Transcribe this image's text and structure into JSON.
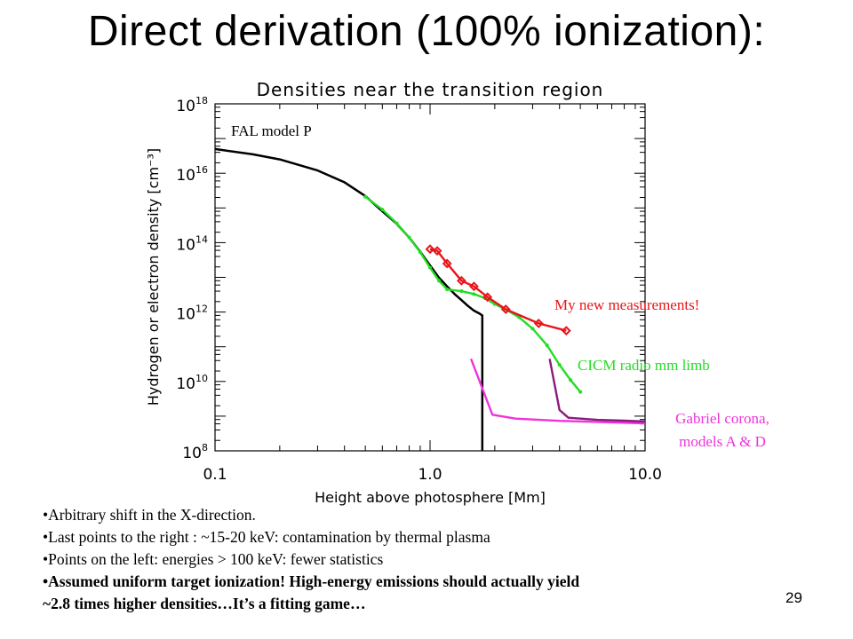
{
  "slide": {
    "title": "Direct derivation (100% ionization):",
    "page_number": "29",
    "bullets": [
      "•Arbitrary shift in the X-direction.",
      "•Last points to the right : ~15-20 keV: contamination by thermal plasma",
      "•Points on the left: energies > 100 keV: fewer statistics",
      "•Assumed uniform target ionization! High-energy emissions should actually yield",
      "~2.8 times higher densities…It’s a fitting game…"
    ]
  },
  "chart_data": {
    "type": "line",
    "title": "Densities near the transition region",
    "xlabel": "Height above photosphere [Mm]",
    "ylabel": "Hydrogen or electron density [cm⁻³]",
    "x_scale": "log",
    "y_scale": "log",
    "xlim": [
      0.1,
      10.0
    ],
    "ylim": [
      100000000.0,
      1e+18
    ],
    "x_tick_values": [
      0.1,
      1.0,
      10.0
    ],
    "x_tick_labels": [
      "0.1",
      "1.0",
      "10.0"
    ],
    "y_tick_values": [
      100000000.0,
      10000000000.0,
      1000000000000.0,
      100000000000000.0,
      1e+16,
      1e+18
    ],
    "y_tick_labels": [
      {
        "base": "10",
        "exp": "8"
      },
      {
        "base": "10",
        "exp": "10"
      },
      {
        "base": "10",
        "exp": "12"
      },
      {
        "base": "10",
        "exp": "14"
      },
      {
        "base": "10",
        "exp": "16"
      },
      {
        "base": "10",
        "exp": "18"
      }
    ],
    "grid": false,
    "annotations": [
      {
        "text": "FAL model P",
        "color": "#000000"
      },
      {
        "text": "My new measurements!",
        "color": "#e8141a"
      },
      {
        "text": "CICM radio mm limb",
        "color": "#22dd22"
      },
      {
        "text": "Gabriel corona,",
        "color": "#ee33dd"
      },
      {
        "text": "models A & D",
        "color": "#ee33dd"
      }
    ],
    "series": [
      {
        "color": "#000000",
        "markers": false,
        "x": [
          0.1,
          0.15,
          0.2,
          0.3,
          0.4,
          0.5,
          0.6,
          0.7,
          0.8,
          0.9,
          1.0,
          1.1,
          1.2,
          1.3,
          1.4,
          1.5,
          1.6,
          1.7,
          1.75,
          1.75
        ],
        "y": [
          5e+16,
          3.5e+16,
          2.5e+16,
          1.2e+16,
          5500000000000000.0,
          2200000000000000.0,
          800000000000000.0,
          350000000000000.0,
          140000000000000.0,
          55000000000000.0,
          22000000000000.0,
          9800000000000.0,
          5500000000000.0,
          3300000000000.0,
          2200000000000.0,
          1500000000000.0,
          1100000000000.0,
          900000000000.0,
          800000000000.0,
          100000000.0
        ]
      },
      {
        "color": "#22dd22",
        "markers": true,
        "x": [
          0.5,
          0.6,
          0.7,
          0.8,
          0.9,
          1.0,
          1.1,
          1.2,
          1.4,
          1.6,
          1.8,
          2.0,
          2.3,
          2.6,
          3.0,
          3.5,
          4.0,
          4.5,
          5.0
        ],
        "y": [
          2100000000000000.0,
          900000000000000.0,
          360000000000000.0,
          140000000000000.0,
          53000000000000.0,
          19000000000000.0,
          8000000000000.0,
          4500000000000.0,
          4000000000000.0,
          3300000000000.0,
          2500000000000.0,
          1700000000000.0,
          1100000000000.0,
          700000000000.0,
          330000000000.0,
          110000000000.0,
          30000000000.0,
          11000000000.0,
          5000000000.0
        ]
      },
      {
        "color": "#e8141a",
        "markers": true,
        "x": [
          1.0,
          1.08,
          1.2,
          1.4,
          1.6,
          1.85,
          2.25,
          3.2,
          4.3
        ],
        "y": [
          65000000000000.0,
          58000000000000.0,
          25000000000000.0,
          8000000000000.0,
          5500000000000.0,
          2700000000000.0,
          1200000000000.0,
          470000000000.0,
          290000000000.0
        ]
      },
      {
        "color": "#ee33dd",
        "markers": false,
        "x": [
          1.55,
          1.95,
          2.5,
          4.0,
          6.0,
          10.0
        ],
        "y": [
          45000000000.0,
          1100000000.0,
          850000000.0,
          730000000.0,
          680000000.0,
          620000000.0
        ]
      },
      {
        "color": "#8a1c7c",
        "markers": false,
        "x": [
          3.6,
          4.0,
          4.4,
          6.0,
          8.0,
          10.0
        ],
        "y": [
          45000000000.0,
          1500000000.0,
          900000000.0,
          780000000.0,
          740000000.0,
          700000000.0
        ]
      }
    ]
  }
}
